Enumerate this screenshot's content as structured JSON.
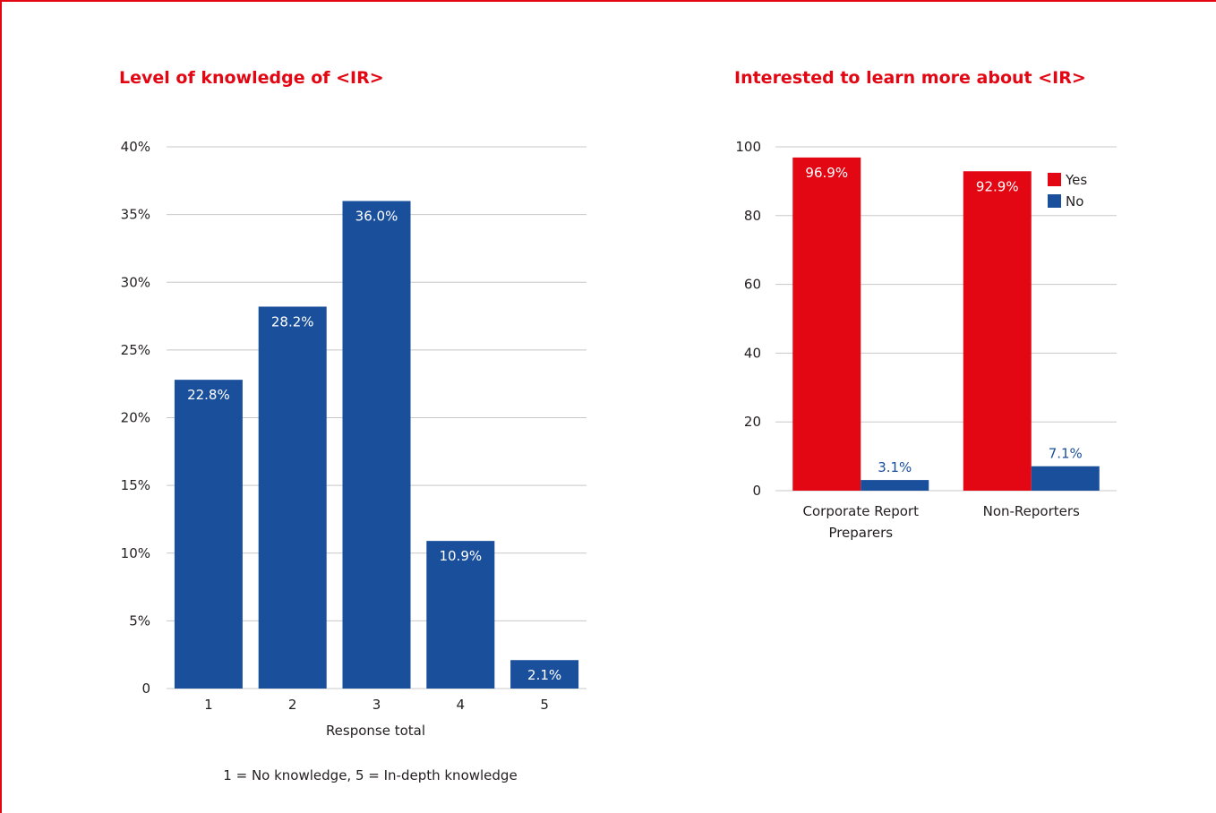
{
  "chart_data": [
    {
      "type": "bar",
      "title": "Level of knowledge of <IR>",
      "categories": [
        "1",
        "2",
        "3",
        "4",
        "5"
      ],
      "values": [
        22.8,
        28.2,
        36.0,
        10.9,
        2.1
      ],
      "value_labels": [
        "22.8%",
        "28.2%",
        "36.0%",
        "10.9%",
        "2.1%"
      ],
      "xlabel": "Response total",
      "ylabel": "",
      "ylim": [
        0,
        40
      ],
      "yticks": [
        0,
        5,
        10,
        15,
        20,
        25,
        30,
        35,
        40
      ],
      "ytick_labels": [
        "0",
        "5%",
        "10%",
        "15%",
        "20%",
        "25%",
        "30%",
        "35%",
        "40%"
      ],
      "grid": true,
      "color": "#1a4f9c",
      "footnote": "1 = No knowledge, 5 = In-depth knowledge"
    },
    {
      "type": "bar",
      "title": "Interested to learn more about <IR>",
      "categories": [
        "Corporate Report Preparers",
        "Non-Reporters"
      ],
      "category_lines": [
        [
          "Corporate Report",
          "Preparers"
        ],
        [
          "Non-Reporters"
        ]
      ],
      "series": [
        {
          "name": "Yes",
          "values": [
            96.9,
            92.9
          ],
          "value_labels": [
            "96.9%",
            "92.9%"
          ],
          "color": "#e30613"
        },
        {
          "name": "No",
          "values": [
            3.1,
            7.1
          ],
          "value_labels": [
            "3.1%",
            "7.1%"
          ],
          "color": "#1a4f9c"
        }
      ],
      "xlabel": "",
      "ylabel": "",
      "ylim": [
        0,
        100
      ],
      "yticks": [
        0,
        20,
        40,
        60,
        80,
        100
      ],
      "ytick_labels": [
        "0",
        "20",
        "40",
        "60",
        "80",
        "100"
      ],
      "grid": true,
      "legend": "top-right"
    }
  ]
}
